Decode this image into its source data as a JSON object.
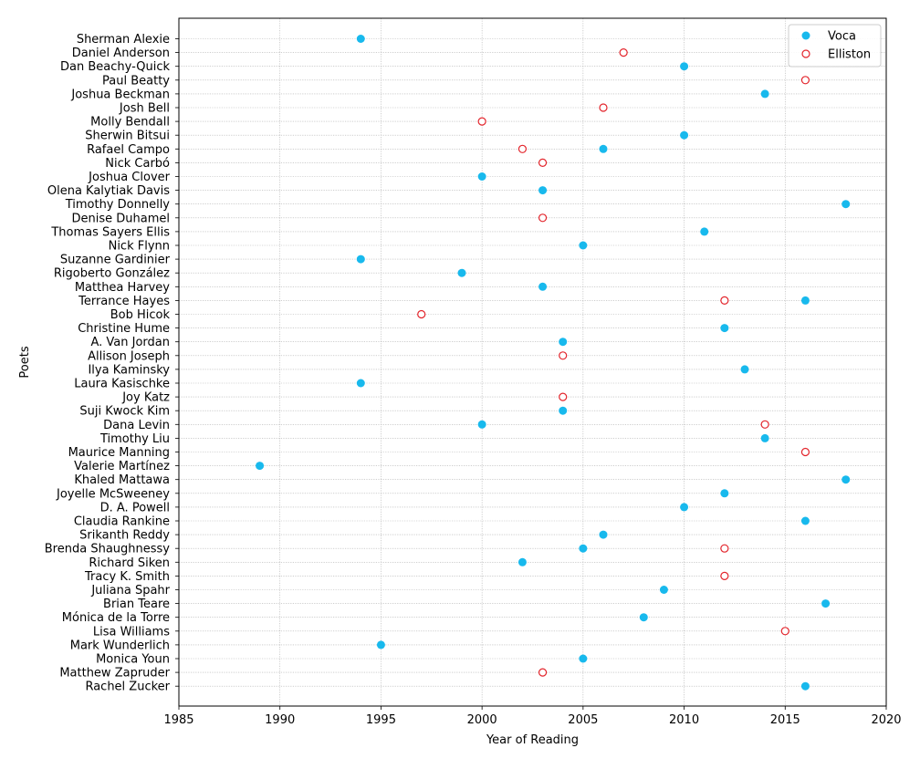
{
  "chart_data": {
    "type": "scatter",
    "xlabel": "Year of Reading",
    "ylabel": "Poets",
    "xlim": [
      1985,
      2020
    ],
    "xticks": [
      1985,
      1990,
      1995,
      2000,
      2005,
      2010,
      2015,
      2020
    ],
    "grid": true,
    "legend_position": "top-right",
    "poets": [
      "Sherman Alexie",
      "Daniel Anderson",
      "Dan Beachy-Quick",
      "Paul Beatty",
      "Joshua Beckman",
      "Josh Bell",
      "Molly Bendall",
      "Sherwin Bitsui",
      "Rafael Campo",
      "Nick Carbó",
      "Joshua Clover",
      "Olena Kalytiak Davis",
      "Timothy Donnelly",
      "Denise Duhamel",
      "Thomas Sayers Ellis",
      "Nick Flynn",
      "Suzanne Gardinier",
      "Rigoberto González",
      "Matthea Harvey",
      "Terrance Hayes",
      "Bob Hicok",
      "Christine Hume",
      "A. Van Jordan",
      "Allison Joseph",
      "Ilya Kaminsky",
      "Laura Kasischke",
      "Joy Katz",
      "Suji Kwock Kim",
      "Dana Levin",
      "Timothy Liu",
      "Maurice Manning",
      "Valerie Martínez",
      "Khaled Mattawa",
      "Joyelle McSweeney",
      "D. A. Powell",
      "Claudia Rankine",
      "Srikanth Reddy",
      "Brenda Shaughnessy",
      "Richard Siken",
      "Tracy K. Smith",
      "Juliana Spahr",
      "Brian Teare",
      "Mónica de la Torre",
      "Lisa Williams",
      "Mark Wunderlich",
      "Monica Youn",
      "Matthew Zapruder",
      "Rachel Zucker"
    ],
    "series": [
      {
        "name": "Voca",
        "color": "#18b9ed",
        "marker": "filled-circle",
        "points": [
          {
            "poet": "Sherman Alexie",
            "year": 1994
          },
          {
            "poet": "Dan Beachy-Quick",
            "year": 2010
          },
          {
            "poet": "Joshua Beckman",
            "year": 2014
          },
          {
            "poet": "Sherwin Bitsui",
            "year": 2010
          },
          {
            "poet": "Rafael Campo",
            "year": 2006
          },
          {
            "poet": "Joshua Clover",
            "year": 2000
          },
          {
            "poet": "Olena Kalytiak Davis",
            "year": 2003
          },
          {
            "poet": "Timothy Donnelly",
            "year": 2018
          },
          {
            "poet": "Thomas Sayers Ellis",
            "year": 2011
          },
          {
            "poet": "Nick Flynn",
            "year": 2005
          },
          {
            "poet": "Suzanne Gardinier",
            "year": 1994
          },
          {
            "poet": "Rigoberto González",
            "year": 1999
          },
          {
            "poet": "Matthea Harvey",
            "year": 2003
          },
          {
            "poet": "Terrance Hayes",
            "year": 2016
          },
          {
            "poet": "Christine Hume",
            "year": 2012
          },
          {
            "poet": "A. Van Jordan",
            "year": 2004
          },
          {
            "poet": "Ilya Kaminsky",
            "year": 2013
          },
          {
            "poet": "Laura Kasischke",
            "year": 1994
          },
          {
            "poet": "Suji Kwock Kim",
            "year": 2004
          },
          {
            "poet": "Dana Levin",
            "year": 2000
          },
          {
            "poet": "Timothy Liu",
            "year": 2014
          },
          {
            "poet": "Valerie Martínez",
            "year": 1989
          },
          {
            "poet": "Khaled Mattawa",
            "year": 2018
          },
          {
            "poet": "Joyelle McSweeney",
            "year": 2012
          },
          {
            "poet": "D. A. Powell",
            "year": 2010
          },
          {
            "poet": "Claudia Rankine",
            "year": 2016
          },
          {
            "poet": "Srikanth Reddy",
            "year": 2006
          },
          {
            "poet": "Brenda Shaughnessy",
            "year": 2005
          },
          {
            "poet": "Richard Siken",
            "year": 2002
          },
          {
            "poet": "Juliana Spahr",
            "year": 2009
          },
          {
            "poet": "Brian Teare",
            "year": 2017
          },
          {
            "poet": "Mónica de la Torre",
            "year": 2008
          },
          {
            "poet": "Mark Wunderlich",
            "year": 1995
          },
          {
            "poet": "Monica Youn",
            "year": 2005
          },
          {
            "poet": "Rachel Zucker",
            "year": 2016
          }
        ]
      },
      {
        "name": "Elliston",
        "color": "#e3242b",
        "marker": "hollow-circle",
        "points": [
          {
            "poet": "Daniel Anderson",
            "year": 2007
          },
          {
            "poet": "Paul Beatty",
            "year": 2016
          },
          {
            "poet": "Josh Bell",
            "year": 2006
          },
          {
            "poet": "Molly Bendall",
            "year": 2000
          },
          {
            "poet": "Rafael Campo",
            "year": 2002
          },
          {
            "poet": "Nick Carbó",
            "year": 2003
          },
          {
            "poet": "Denise Duhamel",
            "year": 2003
          },
          {
            "poet": "Terrance Hayes",
            "year": 2012
          },
          {
            "poet": "Bob Hicok",
            "year": 1997
          },
          {
            "poet": "Allison Joseph",
            "year": 2004
          },
          {
            "poet": "Joy Katz",
            "year": 2004
          },
          {
            "poet": "Dana Levin",
            "year": 2014
          },
          {
            "poet": "Maurice Manning",
            "year": 2016
          },
          {
            "poet": "Brenda Shaughnessy",
            "year": 2012
          },
          {
            "poet": "Tracy K. Smith",
            "year": 2012
          },
          {
            "poet": "Lisa Williams",
            "year": 2015
          },
          {
            "poet": "Matthew Zapruder",
            "year": 2003
          }
        ]
      }
    ]
  }
}
